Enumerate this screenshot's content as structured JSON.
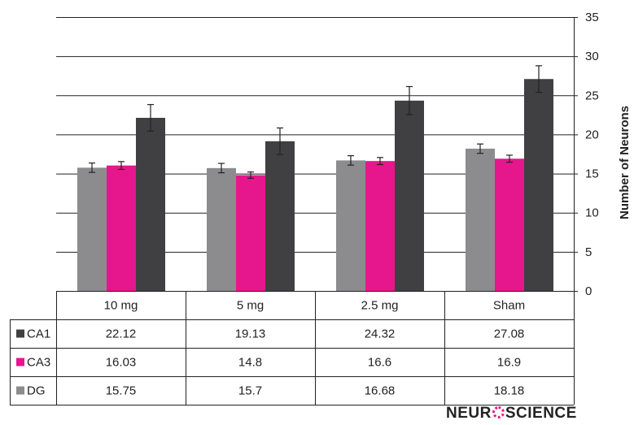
{
  "chart_data": {
    "type": "bar",
    "categories": [
      "10 mg",
      "5 mg",
      "2.5 mg",
      "Sham"
    ],
    "series": [
      {
        "name": "DG",
        "color": "#8c8c8e",
        "values": [
          15.75,
          15.7,
          16.68,
          18.18
        ],
        "errors": [
          0.6,
          0.6,
          0.6,
          0.6
        ]
      },
      {
        "name": "CA3",
        "color": "#e6178c",
        "values": [
          16.03,
          14.8,
          16.6,
          16.9
        ],
        "errors": [
          0.5,
          0.4,
          0.45,
          0.45
        ]
      },
      {
        "name": "CA1",
        "color": "#404042",
        "values": [
          22.12,
          19.13,
          24.32,
          27.08
        ],
        "errors": [
          1.7,
          1.7,
          1.8,
          1.7
        ]
      }
    ],
    "table_rows": [
      {
        "name": "CA1",
        "color": "#404042",
        "values": [
          "22.12",
          "19.13",
          "24.32",
          "27.08"
        ]
      },
      {
        "name": "CA3",
        "color": "#e6178c",
        "values": [
          "16.03",
          "14.8",
          "16.6",
          "16.9"
        ]
      },
      {
        "name": "DG",
        "color": "#8c8c8e",
        "values": [
          "15.75",
          "15.7",
          "16.68",
          "18.18"
        ]
      }
    ],
    "ylabel": "Number of Neurons",
    "ylim": [
      0,
      35
    ],
    "yticks": [
      0,
      5,
      10,
      15,
      20,
      25,
      30,
      35
    ],
    "y_axis_position": "right",
    "grid": true,
    "legend": "data table below chart"
  },
  "branding": {
    "logo_text": "NEUROSCIENCE"
  }
}
